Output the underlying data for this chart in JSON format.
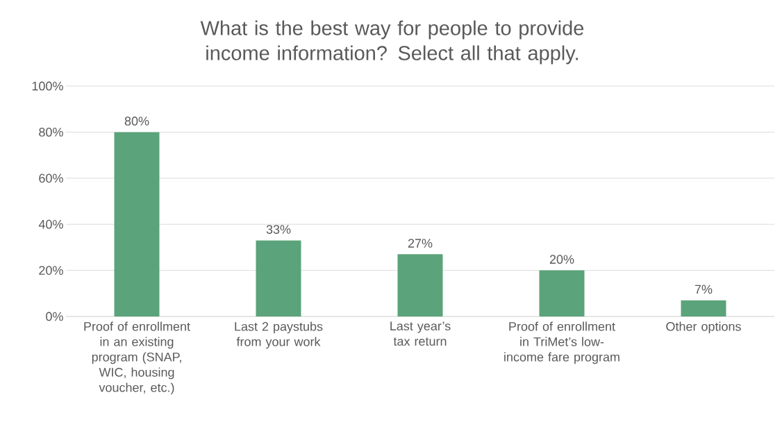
{
  "chart_data": {
    "type": "bar",
    "title": "What is the best way for people to provide income information?  Select all that apply.",
    "categories": [
      "Proof of enrollment in an existing program (SNAP, WIC, housing voucher, etc.)",
      "Last 2 paystubs from your work",
      "Last year’s tax return",
      "Proof of enrollment in TriMet’s low-income fare program",
      "Other options"
    ],
    "values": [
      80,
      33,
      27,
      20,
      7
    ],
    "value_labels": [
      "80%",
      "33%",
      "27%",
      "20%",
      "7%"
    ],
    "color": "#5ba37a",
    "ylim": [
      0,
      100
    ],
    "yticks": [
      {
        "value": 0,
        "label": "0%"
      },
      {
        "value": 20,
        "label": "20%"
      },
      {
        "value": 40,
        "label": "40%"
      },
      {
        "value": 60,
        "label": "60%"
      },
      {
        "value": 80,
        "label": "80%"
      },
      {
        "value": 100,
        "label": "100%"
      }
    ],
    "grid": "y"
  }
}
